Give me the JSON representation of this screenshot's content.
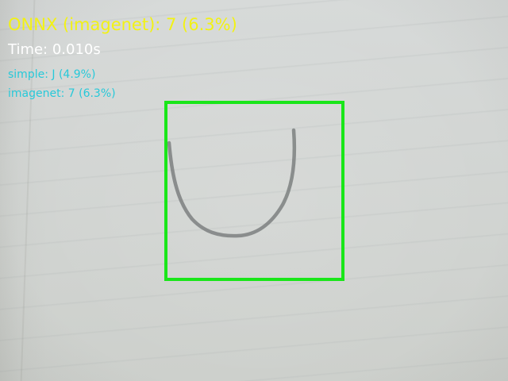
{
  "overlay": {
    "main_prediction": "ONNX (imagenet): 7 (6.3%)",
    "inference_time": "Time: 0.010s",
    "predictions": [
      {
        "text": "simple: J (4.9%)"
      },
      {
        "text": "imagenet: 7 (6.3%)"
      }
    ]
  },
  "colors": {
    "main_text": "#f2f214",
    "time_text": "#ffffff",
    "secondary_text": "#27c9d9",
    "roi_box": "#19e619"
  }
}
